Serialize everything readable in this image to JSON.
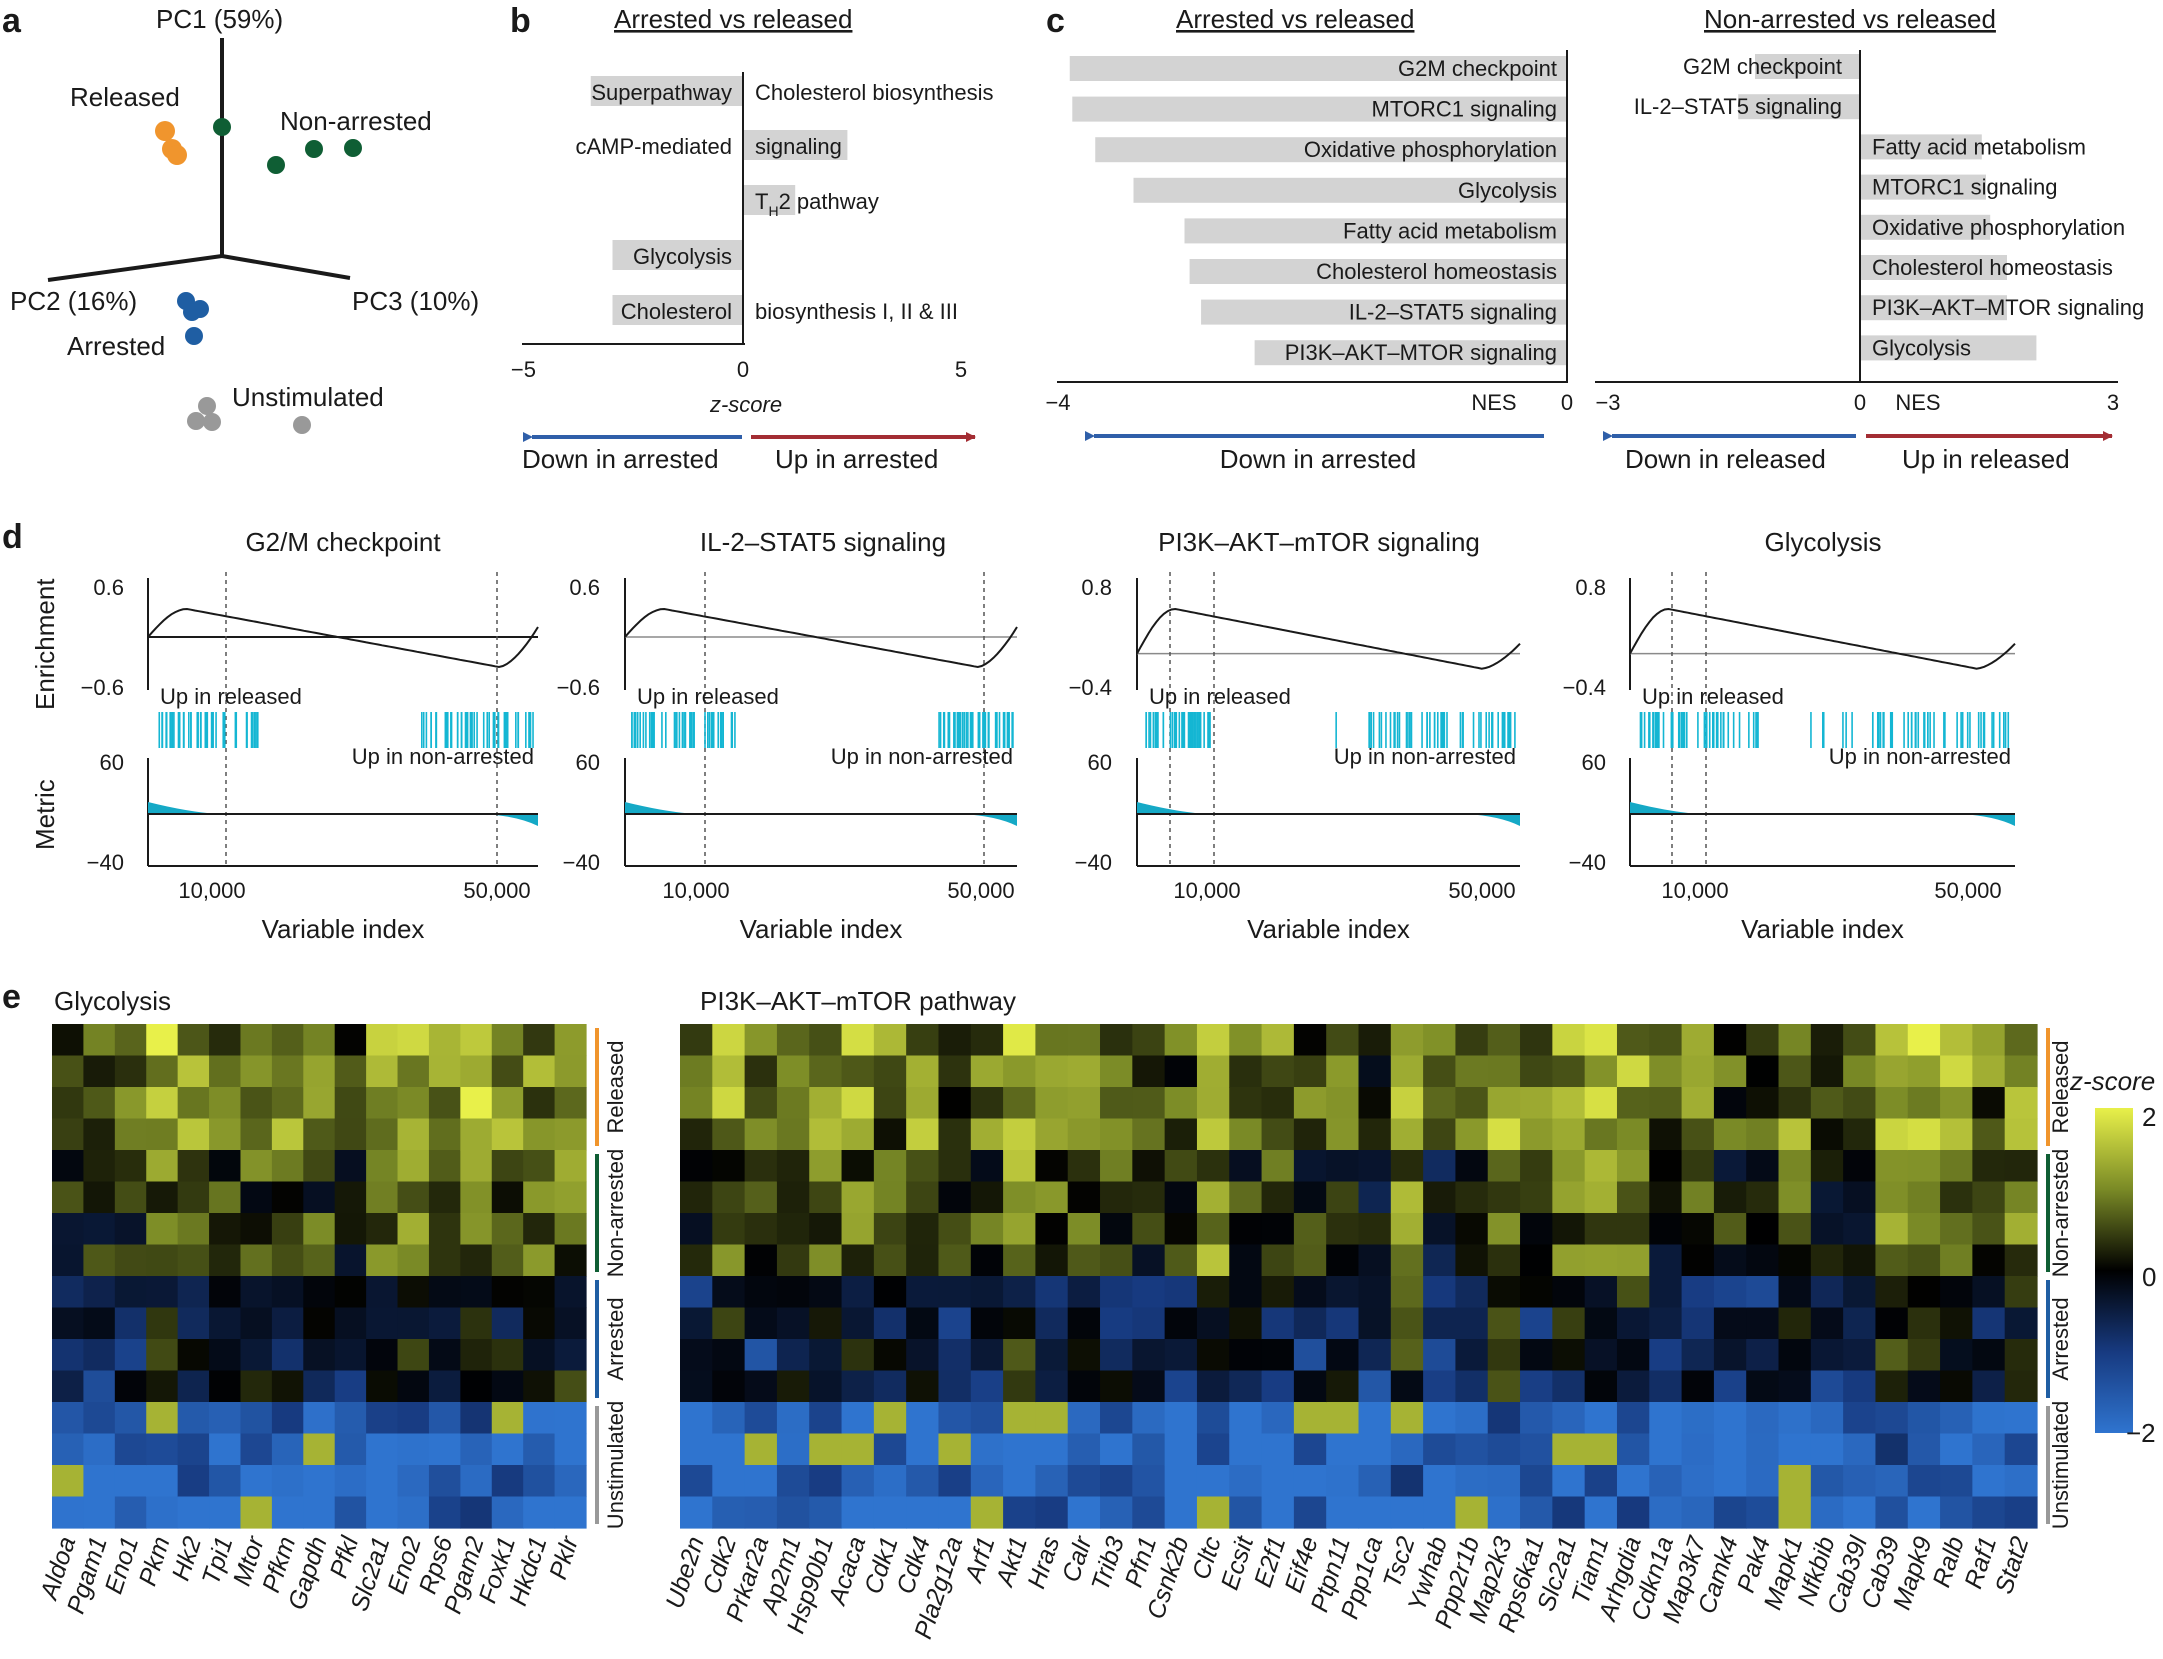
{
  "colors": {
    "released": "#f0952d",
    "non_arrested": "#0f5e34",
    "arrested": "#1f5ea3",
    "unstimulated": "#999999",
    "bar": "#d3d3d3",
    "blue_arrow": "#2f5fa9",
    "red_arrow": "#a32d33",
    "ticks": "#14b6d3",
    "metric_fill": "#15a9c6"
  },
  "panel_labels": {
    "a": "a",
    "b": "b",
    "c": "c",
    "d": "d",
    "e": "e"
  },
  "panel_a": {
    "axes": {
      "pc1": "PC1 (59%)",
      "pc2": "PC2 (16%)",
      "pc3": "PC3 (10%)"
    },
    "groups": {
      "released": "Released",
      "non_arrested": "Non-arrested",
      "arrested": "Arrested",
      "unstimulated": "Unstimulated"
    }
  },
  "panel_b": {
    "title": "Arrested vs released",
    "xlabel": "z-score",
    "arrow_left": "Down in arrested",
    "arrow_right": "Up in arrested",
    "chart_data": {
      "type": "bar",
      "orientation": "horizontal",
      "xlim": [
        -5,
        5
      ],
      "xticks": [
        "−5",
        "0",
        "5"
      ],
      "bars": [
        {
          "label_left": "Superpathway",
          "label_right": "Cholesterol biosynthesis",
          "value": -3.5
        },
        {
          "label_left": "cAMP-mediated",
          "label_right": "signaling",
          "value": 2.4
        },
        {
          "label_right_pre": "T",
          "label_right_sub": "H",
          "label_right_post": "2 pathway",
          "value": 1.2
        },
        {
          "label_left": "Glycolysis",
          "value": -3.0
        },
        {
          "label_left": "Cholesterol",
          "label_right": "biosynthesis I, II & III",
          "value": -3.0
        }
      ]
    }
  },
  "panel_c": {
    "left": {
      "title": "Arrested vs released",
      "xlabel": "NES",
      "arrow_left": "Down in arrested",
      "chart_data": {
        "type": "bar",
        "orientation": "horizontal",
        "xlim": [
          -4,
          0
        ],
        "xticks": [
          "−4",
          "0"
        ],
        "bars": [
          {
            "label": "G2M checkpoint",
            "value": -3.9
          },
          {
            "label": "MTORC1 signaling",
            "value": -3.88
          },
          {
            "label": "Oxidative phosphorylation",
            "value": -3.7
          },
          {
            "label": "Glycolysis",
            "value": -3.4
          },
          {
            "label": "Fatty acid metabolism",
            "value": -3.0
          },
          {
            "label": "Cholesterol homeostasis",
            "value": -2.96
          },
          {
            "label": "IL-2–STAT5 signaling",
            "value": -2.87
          },
          {
            "label": "PI3K–AKT–MTOR signaling",
            "value": -2.45
          }
        ]
      }
    },
    "right": {
      "title": "Non-arrested vs released",
      "xlabel": "NES",
      "arrow_left": "Down in released",
      "arrow_right": "Up in released",
      "chart_data": {
        "type": "bar",
        "orientation": "horizontal",
        "xlim": [
          -3,
          3
        ],
        "xticks": [
          "−3",
          "0",
          "3"
        ],
        "bars": [
          {
            "label": "G2M checkpoint",
            "value": -1.25
          },
          {
            "label": "IL-2–STAT5 signaling",
            "value": -1.45
          },
          {
            "label": "Fatty acid metabolism",
            "value": 1.45
          },
          {
            "label": "MTORC1 signaling",
            "value": 1.5
          },
          {
            "label": "Oxidative phosphorylation",
            "value": 1.55
          },
          {
            "label": "Cholesterol homeostasis",
            "value": 1.75
          },
          {
            "label": "PI3K–AKT–MTOR signaling",
            "value": 1.75
          },
          {
            "label": "Glycolysis",
            "value": 2.1
          }
        ]
      }
    }
  },
  "panel_d": {
    "ylabel_top": "Enrichment",
    "ylabel_bottom": "Metric",
    "xlabel": "Variable index",
    "up_left": "Up in released",
    "up_right": "Up in non-arrested",
    "chart_data": [
      {
        "type": "line",
        "title": "G2/M checkpoint",
        "yticks": [
          "0.6",
          "−0.6"
        ],
        "ylim": [
          -0.6,
          0.6
        ],
        "metric_ticks": [
          "60",
          "−40"
        ],
        "xticks": [
          "10,000",
          "50,000"
        ],
        "zero_line": 0.0
      },
      {
        "type": "line",
        "title": "IL-2–STAT5 signaling",
        "yticks": [
          "0.6",
          "−0.6"
        ],
        "ylim": [
          -0.6,
          0.6
        ],
        "metric_ticks": [
          "60",
          "−40"
        ],
        "xticks": [
          "10,000",
          "50,000"
        ],
        "zero_line": 0.0
      },
      {
        "type": "line",
        "title": "PI3K–AKT–mTOR signaling",
        "yticks": [
          "0.8",
          "−0.4"
        ],
        "ylim": [
          -0.4,
          0.8
        ],
        "metric_ticks": [
          "60",
          "−40"
        ],
        "xticks": [
          "10,000",
          "50,000"
        ],
        "zero_line": 0.0
      },
      {
        "type": "line",
        "title": "Glycolysis",
        "yticks": [
          "0.8",
          "−0.4"
        ],
        "ylim": [
          -0.4,
          0.8
        ],
        "metric_ticks": [
          "60",
          "−40"
        ],
        "xticks": [
          "10,000",
          "50,000"
        ],
        "zero_line": 0.0
      }
    ]
  },
  "panel_e": {
    "left_title": "Glycolysis",
    "right_title": "PI3K–AKT–mTOR pathway",
    "groups": [
      "Released",
      "Non-arrested",
      "Arrested",
      "Unstimulated"
    ],
    "legend": {
      "title": "z-score",
      "max": "2",
      "mid": "0",
      "min": "−2"
    },
    "chart_data": {
      "type": "heatmap",
      "scale": [
        -2,
        2
      ],
      "rows_per_group": 4,
      "glycolysis_genes": [
        "Aldoa",
        "Pgam1",
        "Eno1",
        "Pkm",
        "Hk2",
        "Tpi1",
        "Mtor",
        "Pfkm",
        "Gapdh",
        "Pfkl",
        "Slc2a1",
        "Eno2",
        "Rps6",
        "Pgam2",
        "Foxk1",
        "Hkdc1",
        "Pklr"
      ],
      "pi3k_genes": [
        "Ube2n",
        "Cdk2",
        "Prkar2a",
        "Ap2m1",
        "Hsp90b1",
        "Acaca",
        "Cdk1",
        "Cdk4",
        "Pla2g12a",
        "Arf1",
        "Akt1",
        "Hras",
        "Calr",
        "Trib3",
        "Pfn1",
        "Csnk2b",
        "Cltc",
        "Ecsit",
        "E2f1",
        "Eif4e",
        "Ptpn11",
        "Ppp1ca",
        "Tsc2",
        "Ywhab",
        "Ppp2r1b",
        "Map2k3",
        "Rps6ka1",
        "Slc2a1",
        "Tiam1",
        "Arhgdia",
        "Cdkn1a",
        "Map3k7",
        "Camk4",
        "Pak4",
        "Mapk1",
        "Nfkbib",
        "Cab39l",
        "Cab39",
        "Mapk9",
        "Ralb",
        "Raf1",
        "Stat2"
      ],
      "group_means": {
        "released": 0.9,
        "non_arrested": 0.4,
        "arrested": -0.4,
        "unstimulated": -1.7
      }
    }
  }
}
